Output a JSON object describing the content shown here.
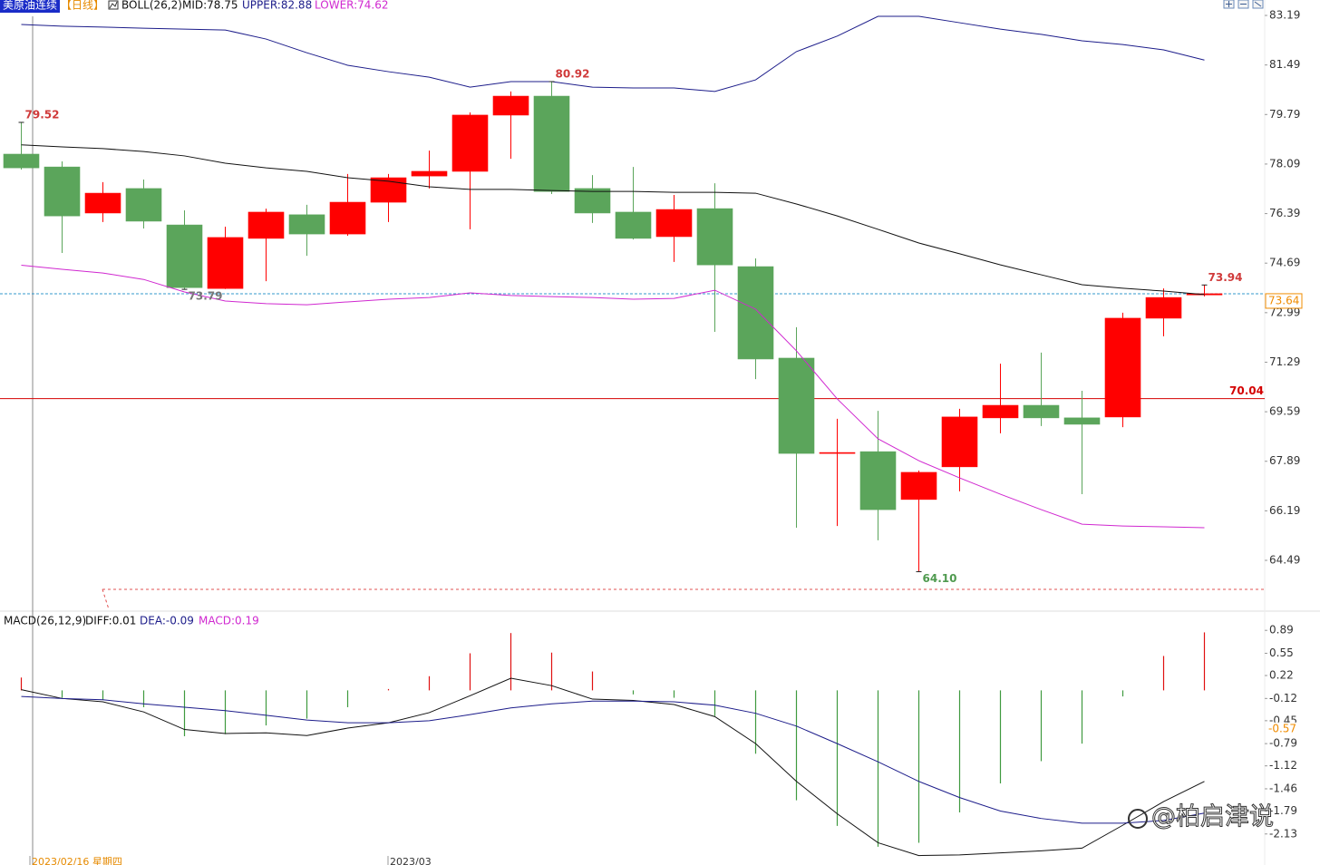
{
  "header": {
    "symbol": "美原油连续",
    "period": "【日线】",
    "indicator": "BOLL(26,2)",
    "mid": "MID:78.75",
    "upper": "UPPER:82.88",
    "lower": "LOWER:74.62"
  },
  "watermark": "@柏启津说",
  "chart_data": [
    {
      "type": "candlestick",
      "ylim": [
        62.81,
        83.72
      ],
      "yticks": [
        83.19,
        81.49,
        79.79,
        78.09,
        76.39,
        74.69,
        72.99,
        71.29,
        69.59,
        67.89,
        66.19,
        64.49
      ],
      "up_color": "#ff0000",
      "down_color": "#5ba55b",
      "open": [
        78.43,
        77.99,
        76.41,
        77.25,
        76.0,
        73.82,
        75.54,
        76.35,
        75.69,
        76.78,
        77.68,
        77.84,
        79.77,
        80.42,
        77.25,
        76.44,
        75.6,
        76.56,
        74.57,
        71.43,
        68.16,
        68.22,
        66.58,
        67.7,
        69.38,
        69.81,
        69.38,
        69.41,
        72.8,
        73.6
      ],
      "high": [
        79.52,
        78.18,
        77.47,
        77.56,
        76.5,
        75.94,
        76.56,
        76.69,
        77.75,
        77.75,
        78.55,
        79.86,
        80.58,
        80.92,
        77.71,
        77.99,
        77.03,
        77.43,
        74.85,
        72.49,
        69.35,
        69.62,
        67.57,
        69.69,
        71.24,
        71.62,
        70.31,
        72.99,
        73.82,
        73.94
      ],
      "low": [
        77.9,
        75.04,
        76.1,
        75.88,
        73.79,
        73.8,
        74.07,
        74.94,
        75.63,
        76.1,
        77.25,
        75.85,
        78.27,
        77.06,
        76.07,
        75.5,
        74.73,
        72.33,
        70.71,
        65.61,
        65.67,
        65.18,
        64.1,
        66.86,
        68.85,
        69.1,
        66.76,
        69.06,
        72.18,
        73.55
      ],
      "close": [
        77.96,
        76.31,
        77.09,
        76.13,
        73.85,
        75.57,
        76.44,
        75.69,
        76.78,
        77.62,
        77.84,
        79.77,
        80.42,
        77.15,
        76.41,
        75.54,
        76.53,
        74.63,
        71.4,
        68.16,
        68.19,
        66.23,
        67.51,
        69.41,
        69.81,
        69.38,
        69.16,
        72.8,
        73.51,
        73.64
      ],
      "lines": [
        {
          "color": "#1c1c8a",
          "values": [
            82.88,
            82.82,
            82.79,
            82.75,
            82.72,
            82.69,
            82.38,
            81.91,
            81.48,
            81.26,
            81.07,
            80.73,
            80.92,
            80.92,
            80.73,
            80.7,
            80.7,
            80.58,
            80.98,
            81.95,
            82.48,
            83.16,
            83.16,
            82.94,
            82.72,
            82.54,
            82.32,
            82.19,
            82.01,
            81.66
          ]
        },
        {
          "color": "#111111",
          "values": [
            78.75,
            78.68,
            78.62,
            78.52,
            78.37,
            78.12,
            77.96,
            77.84,
            77.62,
            77.5,
            77.31,
            77.22,
            77.22,
            77.18,
            77.15,
            77.15,
            77.12,
            77.12,
            77.09,
            76.72,
            76.31,
            75.85,
            75.38,
            75.01,
            74.63,
            74.29,
            73.95,
            73.83,
            73.73,
            73.61
          ]
        },
        {
          "color": "#d028d0",
          "values": [
            74.62,
            74.48,
            74.35,
            74.13,
            73.7,
            73.39,
            73.3,
            73.26,
            73.36,
            73.45,
            73.51,
            73.67,
            73.58,
            73.54,
            73.51,
            73.45,
            73.48,
            73.76,
            73.11,
            71.68,
            70.03,
            68.66,
            67.91,
            67.32,
            66.76,
            66.23,
            65.73,
            65.67,
            65.64,
            65.61
          ]
        }
      ],
      "annotations": [
        {
          "value": 79.52,
          "color": "#d03a3a"
        },
        {
          "value": 80.92,
          "color": "#d03a3a"
        },
        {
          "value": 73.79,
          "color": "#777777"
        },
        {
          "value": 64.1,
          "label": "64.10",
          "color": "#4f9a4f"
        },
        {
          "value": 73.94,
          "color": "#d03a3a"
        }
      ],
      "hline": {
        "value": 70.04,
        "color": "#d40000"
      },
      "last_price": {
        "value": 73.64,
        "color": "#f08c00",
        "line_color": "#3399cc"
      }
    },
    {
      "type": "macd",
      "ylim": [
        -2.59,
        0.96
      ],
      "yticks": [
        0.89,
        0.55,
        0.22,
        -0.12,
        -0.45,
        -0.79,
        -1.12,
        -1.46,
        -1.79,
        -2.13
      ],
      "legend": [
        {
          "text": "MACD(26,12,9)",
          "color": "#111111"
        },
        {
          "text": "DIFF:0.01",
          "color": "#111111"
        },
        {
          "text": "DEA:-0.09",
          "color": "#1c1c8a"
        },
        {
          "text": "MACD:0.19",
          "color": "#d028d0"
        }
      ],
      "up_color": "#e01010",
      "down_color": "#3f9a3f",
      "histogram": [
        0.19,
        -0.11,
        -0.14,
        -0.25,
        -0.68,
        -0.65,
        -0.52,
        -0.42,
        -0.25,
        0.02,
        0.21,
        0.55,
        0.85,
        0.56,
        0.28,
        -0.06,
        -0.11,
        -0.38,
        -0.94,
        -1.63,
        -2.01,
        -2.32,
        -2.26,
        -1.81,
        -1.38,
        -1.05,
        -0.79,
        -0.09,
        0.51,
        0.86
      ],
      "lines": [
        {
          "color": "#111111",
          "values": [
            0.01,
            -0.12,
            -0.17,
            -0.32,
            -0.58,
            -0.64,
            -0.63,
            -0.67,
            -0.56,
            -0.48,
            -0.33,
            -0.08,
            0.18,
            0.07,
            -0.13,
            -0.15,
            -0.21,
            -0.39,
            -0.79,
            -1.35,
            -1.83,
            -2.26,
            -2.45,
            -2.44,
            -2.41,
            -2.38,
            -2.34,
            -2.0,
            -1.65,
            -1.35
          ]
        },
        {
          "color": "#1c1c8a",
          "values": [
            -0.09,
            -0.12,
            -0.14,
            -0.2,
            -0.25,
            -0.3,
            -0.37,
            -0.44,
            -0.48,
            -0.48,
            -0.45,
            -0.36,
            -0.26,
            -0.2,
            -0.16,
            -0.16,
            -0.17,
            -0.22,
            -0.34,
            -0.53,
            -0.79,
            -1.06,
            -1.35,
            -1.59,
            -1.79,
            -1.9,
            -1.97,
            -1.97,
            -1.93,
            -1.82
          ]
        }
      ],
      "cursor_value": {
        "value": -0.57,
        "color": "#f08c00"
      },
      "x_labels": [
        "2023/02/16 星期四",
        "2023/03"
      ]
    }
  ]
}
